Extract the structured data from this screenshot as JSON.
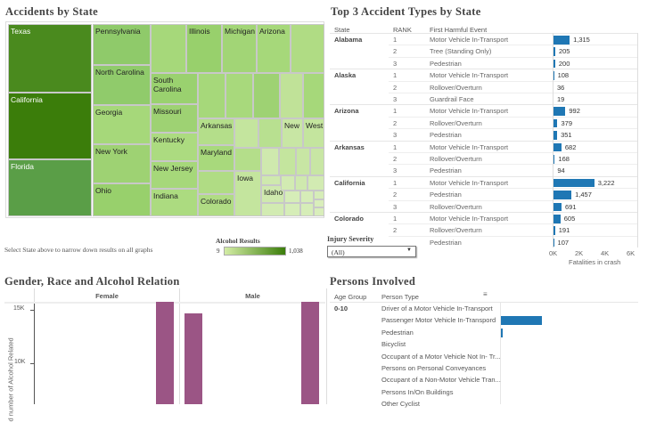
{
  "treemap": {
    "title": "Accidents by State",
    "labels": [
      "Texas",
      "California",
      "Florida",
      "Pennsylvania",
      "North Carolina",
      "Georgia",
      "New York",
      "Ohio",
      "",
      "South Carolina",
      "Missouri",
      "Kentucky",
      "New Jersey",
      "Indiana",
      "Illinois",
      "Michigan",
      "Arizona",
      "",
      "Arkansas",
      "New",
      "West",
      "Maryland",
      "Colorado",
      "Iowa",
      "Idaho"
    ],
    "hint": "Select State above to narrow down results on all graphs"
  },
  "legend": {
    "title": "Alcohol Results",
    "min": "9",
    "max": "1,038",
    "color_low": "#d4eda6",
    "color_high": "#3b7d0a"
  },
  "filter": {
    "label": "Injury Severity",
    "value": "(All)"
  },
  "top3": {
    "title": "Top 3 Accident Types by State",
    "headers": [
      "State",
      "RANK",
      "First Harmful Event"
    ],
    "rows": [
      {
        "state": "Alabama",
        "rank": "1",
        "event": "Motor Vehicle In-Transport",
        "value": 1315,
        "label": "1,315"
      },
      {
        "state": "",
        "rank": "2",
        "event": "Tree (Standing Only)",
        "value": 205,
        "label": "205"
      },
      {
        "state": "",
        "rank": "3",
        "event": "Pedestrian",
        "value": 200,
        "label": "200"
      },
      {
        "state": "Alaska",
        "rank": "1",
        "event": "Motor Vehicle In-Transport",
        "value": 108,
        "label": "108"
      },
      {
        "state": "",
        "rank": "2",
        "event": "Rollover/Overturn",
        "value": 36,
        "label": "36"
      },
      {
        "state": "",
        "rank": "3",
        "event": "Guardrail Face",
        "value": 19,
        "label": "19"
      },
      {
        "state": "Arizona",
        "rank": "1",
        "event": "Motor Vehicle In-Transport",
        "value": 992,
        "label": "992"
      },
      {
        "state": "",
        "rank": "2",
        "event": "Rollover/Overturn",
        "value": 379,
        "label": "379"
      },
      {
        "state": "",
        "rank": "3",
        "event": "Pedestrian",
        "value": 351,
        "label": "351"
      },
      {
        "state": "Arkansas",
        "rank": "1",
        "event": "Motor Vehicle In-Transport",
        "value": 682,
        "label": "682"
      },
      {
        "state": "",
        "rank": "2",
        "event": "Rollover/Overturn",
        "value": 168,
        "label": "168"
      },
      {
        "state": "",
        "rank": "3",
        "event": "Pedestrian",
        "value": 94,
        "label": "94"
      },
      {
        "state": "California",
        "rank": "1",
        "event": "Motor Vehicle In-Transport",
        "value": 3222,
        "label": "3,222"
      },
      {
        "state": "",
        "rank": "2",
        "event": "Pedestrian",
        "value": 1457,
        "label": "1,457"
      },
      {
        "state": "",
        "rank": "3",
        "event": "Rollover/Overturn",
        "value": 691,
        "label": "691"
      },
      {
        "state": "Colorado",
        "rank": "1",
        "event": "Motor Vehicle In-Transport",
        "value": 605,
        "label": "605"
      },
      {
        "state": "",
        "rank": "2",
        "event": "Rollover/Overturn",
        "value": 191,
        "label": "191"
      },
      {
        "state": "",
        "rank": "",
        "event": "Pedestrian",
        "value": 107,
        "label": "107"
      }
    ],
    "axis_ticks": [
      "0K",
      "2K",
      "4K",
      "6K"
    ],
    "axis_label": "Fatalities in crash",
    "bar_color": "#1f77b4"
  },
  "gender": {
    "title": "Gender, Race and Alcohol Relation",
    "panels": [
      "Female",
      "Male"
    ],
    "y_ticks": [
      "15K",
      "10K"
    ],
    "y_label": "d number of Alcohol Related",
    "bar_color": "#9b5585",
    "bars": [
      {
        "panel": "Female",
        "value": 16000
      },
      {
        "panel": "Male",
        "value": 14700
      },
      {
        "panel": "Male",
        "value": 16000
      }
    ]
  },
  "persons": {
    "title": "Persons Involved",
    "headers": [
      "Age Group",
      "Person Type"
    ],
    "age_group": "0-10",
    "rows": [
      {
        "type": "Driver of a Motor Vehicle In-Transport",
        "fraction": 0
      },
      {
        "type": "Passenger Motor Vehicle In-Transpord",
        "fraction": 1
      },
      {
        "type": "Pedestrian",
        "fraction": 0.04
      },
      {
        "type": "Bicyclist",
        "fraction": 0
      },
      {
        "type": "Occupant of a Motor Vehicle Not In- Tr...",
        "fraction": 0
      },
      {
        "type": "Persons on Personal Conveyances",
        "fraction": 0
      },
      {
        "type": "Occupant of a Non-Motor Vehicle Tran...",
        "fraction": 0
      },
      {
        "type": "Persons In/On Buildings",
        "fraction": 0
      },
      {
        "type": "Other Cyclist",
        "fraction": 0
      }
    ]
  }
}
